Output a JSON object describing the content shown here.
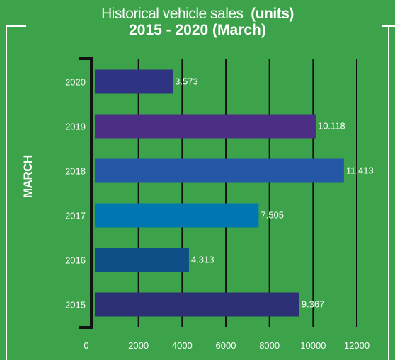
{
  "title_line1": "Historical vehicle sales",
  "title_line1_bold": "(units)",
  "title_line2": "2015 - 2020 (March)",
  "y_axis_label": "MARCH",
  "chart_data": {
    "type": "bar",
    "orientation": "horizontal",
    "title": "Historical vehicle sales (units) 2015 - 2020 (March)",
    "ylabel": "MARCH",
    "categories": [
      "2020",
      "2019",
      "2018",
      "2017",
      "2016",
      "2015"
    ],
    "values": [
      3573,
      10118,
      11413,
      7505,
      4313,
      9367
    ],
    "value_labels": [
      "3.573",
      "10.118",
      "11.413",
      "7.505",
      "4.313",
      "9.367"
    ],
    "bar_colors": [
      "#2e3382",
      "#4c2f85",
      "#2457a5",
      "#0077b0",
      "#0e5085",
      "#2c3176"
    ],
    "xlim": [
      0,
      12000
    ],
    "xticks": [
      0,
      2000,
      4000,
      6000,
      8000,
      10000,
      12000
    ],
    "grid": true,
    "gridline_color": "#111111"
  }
}
